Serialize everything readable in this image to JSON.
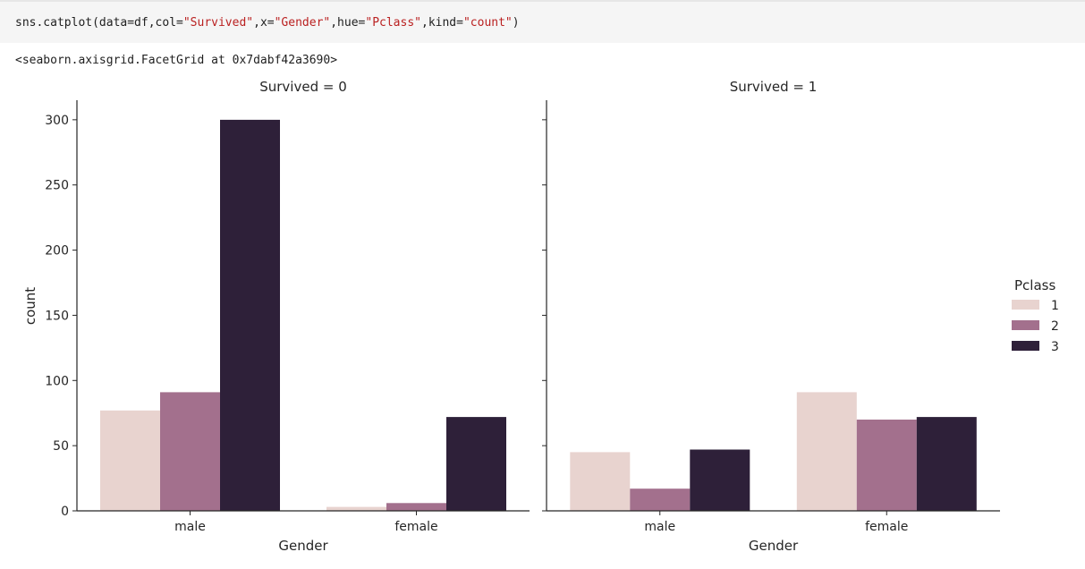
{
  "code_cell": {
    "prefix": "sns.catplot(",
    "parts": [
      {
        "k": "data=df,col=",
        "v": "\"Survived\""
      },
      {
        "k": ",x=",
        "v": "\"Gender\""
      },
      {
        "k": ",hue=",
        "v": "\"Pclass\""
      },
      {
        "k": ",kind=",
        "v": "\"count\""
      }
    ],
    "suffix": ")"
  },
  "output_text": "<seaborn.axisgrid.FacetGrid at 0x7dabf42a3690>",
  "chart_data": {
    "type": "bar",
    "facet_variable": "Survived",
    "xlabel": "Gender",
    "ylabel": "count",
    "ylim": [
      0,
      315
    ],
    "yticks": [
      0,
      50,
      100,
      150,
      200,
      250,
      300
    ],
    "categories": [
      "male",
      "female"
    ],
    "legend": {
      "title": "Pclass",
      "placement": "center-right"
    },
    "colors": {
      "1": "#e8d3cf",
      "2": "#a3708d",
      "3": "#2e2039"
    },
    "panels": [
      {
        "title": "Survived = 0",
        "series": [
          {
            "name": "1",
            "values": [
              77,
              3
            ]
          },
          {
            "name": "2",
            "values": [
              91,
              6
            ]
          },
          {
            "name": "3",
            "values": [
              300,
              72
            ]
          }
        ]
      },
      {
        "title": "Survived = 1",
        "series": [
          {
            "name": "1",
            "values": [
              45,
              91
            ]
          },
          {
            "name": "2",
            "values": [
              17,
              70
            ]
          },
          {
            "name": "3",
            "values": [
              47,
              72
            ]
          }
        ]
      }
    ]
  }
}
